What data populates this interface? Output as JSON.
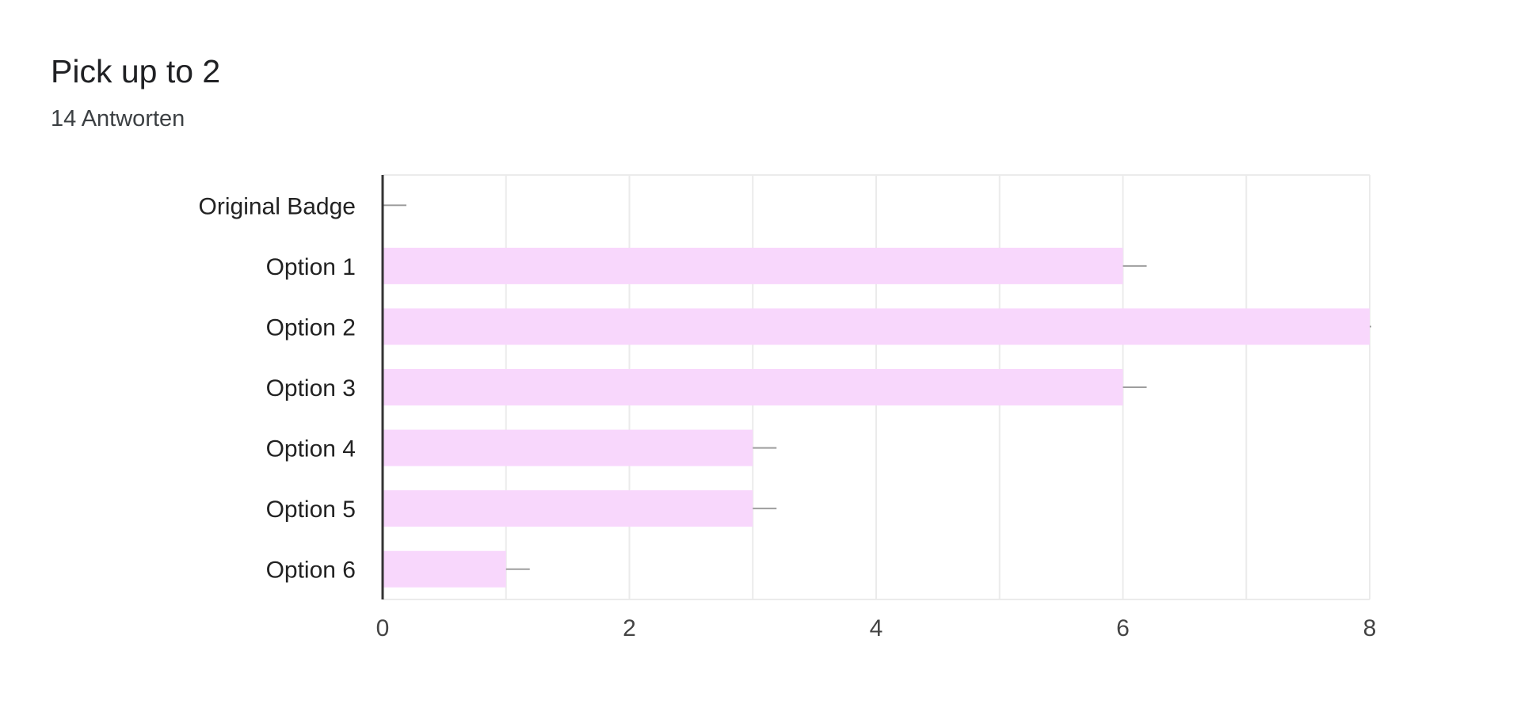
{
  "header": {
    "title": "Pick up to 2",
    "subtitle": "14 Antworten"
  },
  "chart_data": {
    "type": "bar",
    "orientation": "horizontal",
    "categories": [
      "Original Badge",
      "Option 1",
      "Option 2",
      "Option 3",
      "Option 4",
      "Option 5",
      "Option 6"
    ],
    "values": [
      0,
      6,
      8,
      6,
      3,
      3,
      1
    ],
    "xlim": [
      0,
      8
    ],
    "xticks": [
      "0",
      "2",
      "4",
      "6",
      "8"
    ],
    "gridlines": "vertical, every 1",
    "legend": "none",
    "colors": {
      "bar": "#f8d7fc",
      "axis": "#333333",
      "grid": "#ebebeb",
      "whisker": "#9e9e9e"
    }
  }
}
